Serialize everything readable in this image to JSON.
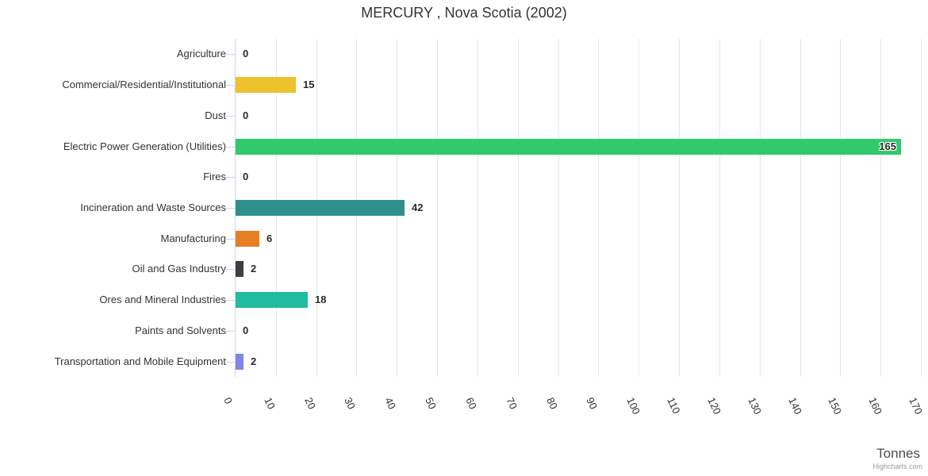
{
  "chart_data": {
    "type": "bar",
    "orientation": "horizontal",
    "title": "MERCURY , Nova Scotia (2002)",
    "categories": [
      "Agriculture",
      "Commercial/Residential/Institutional",
      "Dust",
      "Electric Power Generation (Utilities)",
      "Fires",
      "Incineration and Waste Sources",
      "Manufacturing",
      "Oil and Gas Industry",
      "Ores and Mineral Industries",
      "Paints and Solvents",
      "Transportation and Mobile Equipment"
    ],
    "values": [
      0,
      15,
      0,
      165,
      0,
      42,
      6,
      2,
      18,
      0,
      2
    ],
    "data_labels": [
      "0",
      "15",
      "0",
      "165",
      "0",
      "42",
      "6",
      "2",
      "18",
      "0",
      "2"
    ],
    "bar_colors": [
      null,
      "#ecc22d",
      null,
      "#31c96e",
      null,
      "#2e8f8f",
      "#e67f24",
      "#3e3e42",
      "#1fbd9e",
      null,
      "#8086e8"
    ],
    "xlabel": "Tonnes",
    "x_ticks": [
      0,
      10,
      20,
      30,
      40,
      50,
      60,
      70,
      80,
      90,
      100,
      110,
      120,
      130,
      140,
      150,
      160,
      170
    ],
    "xlim": [
      0,
      170
    ],
    "grid": "vertical",
    "legend": "none"
  },
  "credits": {
    "label": "Highcharts.com"
  },
  "palette": {
    "background": "#ffffff",
    "gridline": "#e6e6e6",
    "axis_line": "#ccd6eb",
    "category_text": "#333333",
    "tick_text": "#333333",
    "value_text": "#2b2b2b",
    "title_text": "#333333",
    "axis_title_text": "#4d4d4d",
    "credits_text": "#999999"
  }
}
